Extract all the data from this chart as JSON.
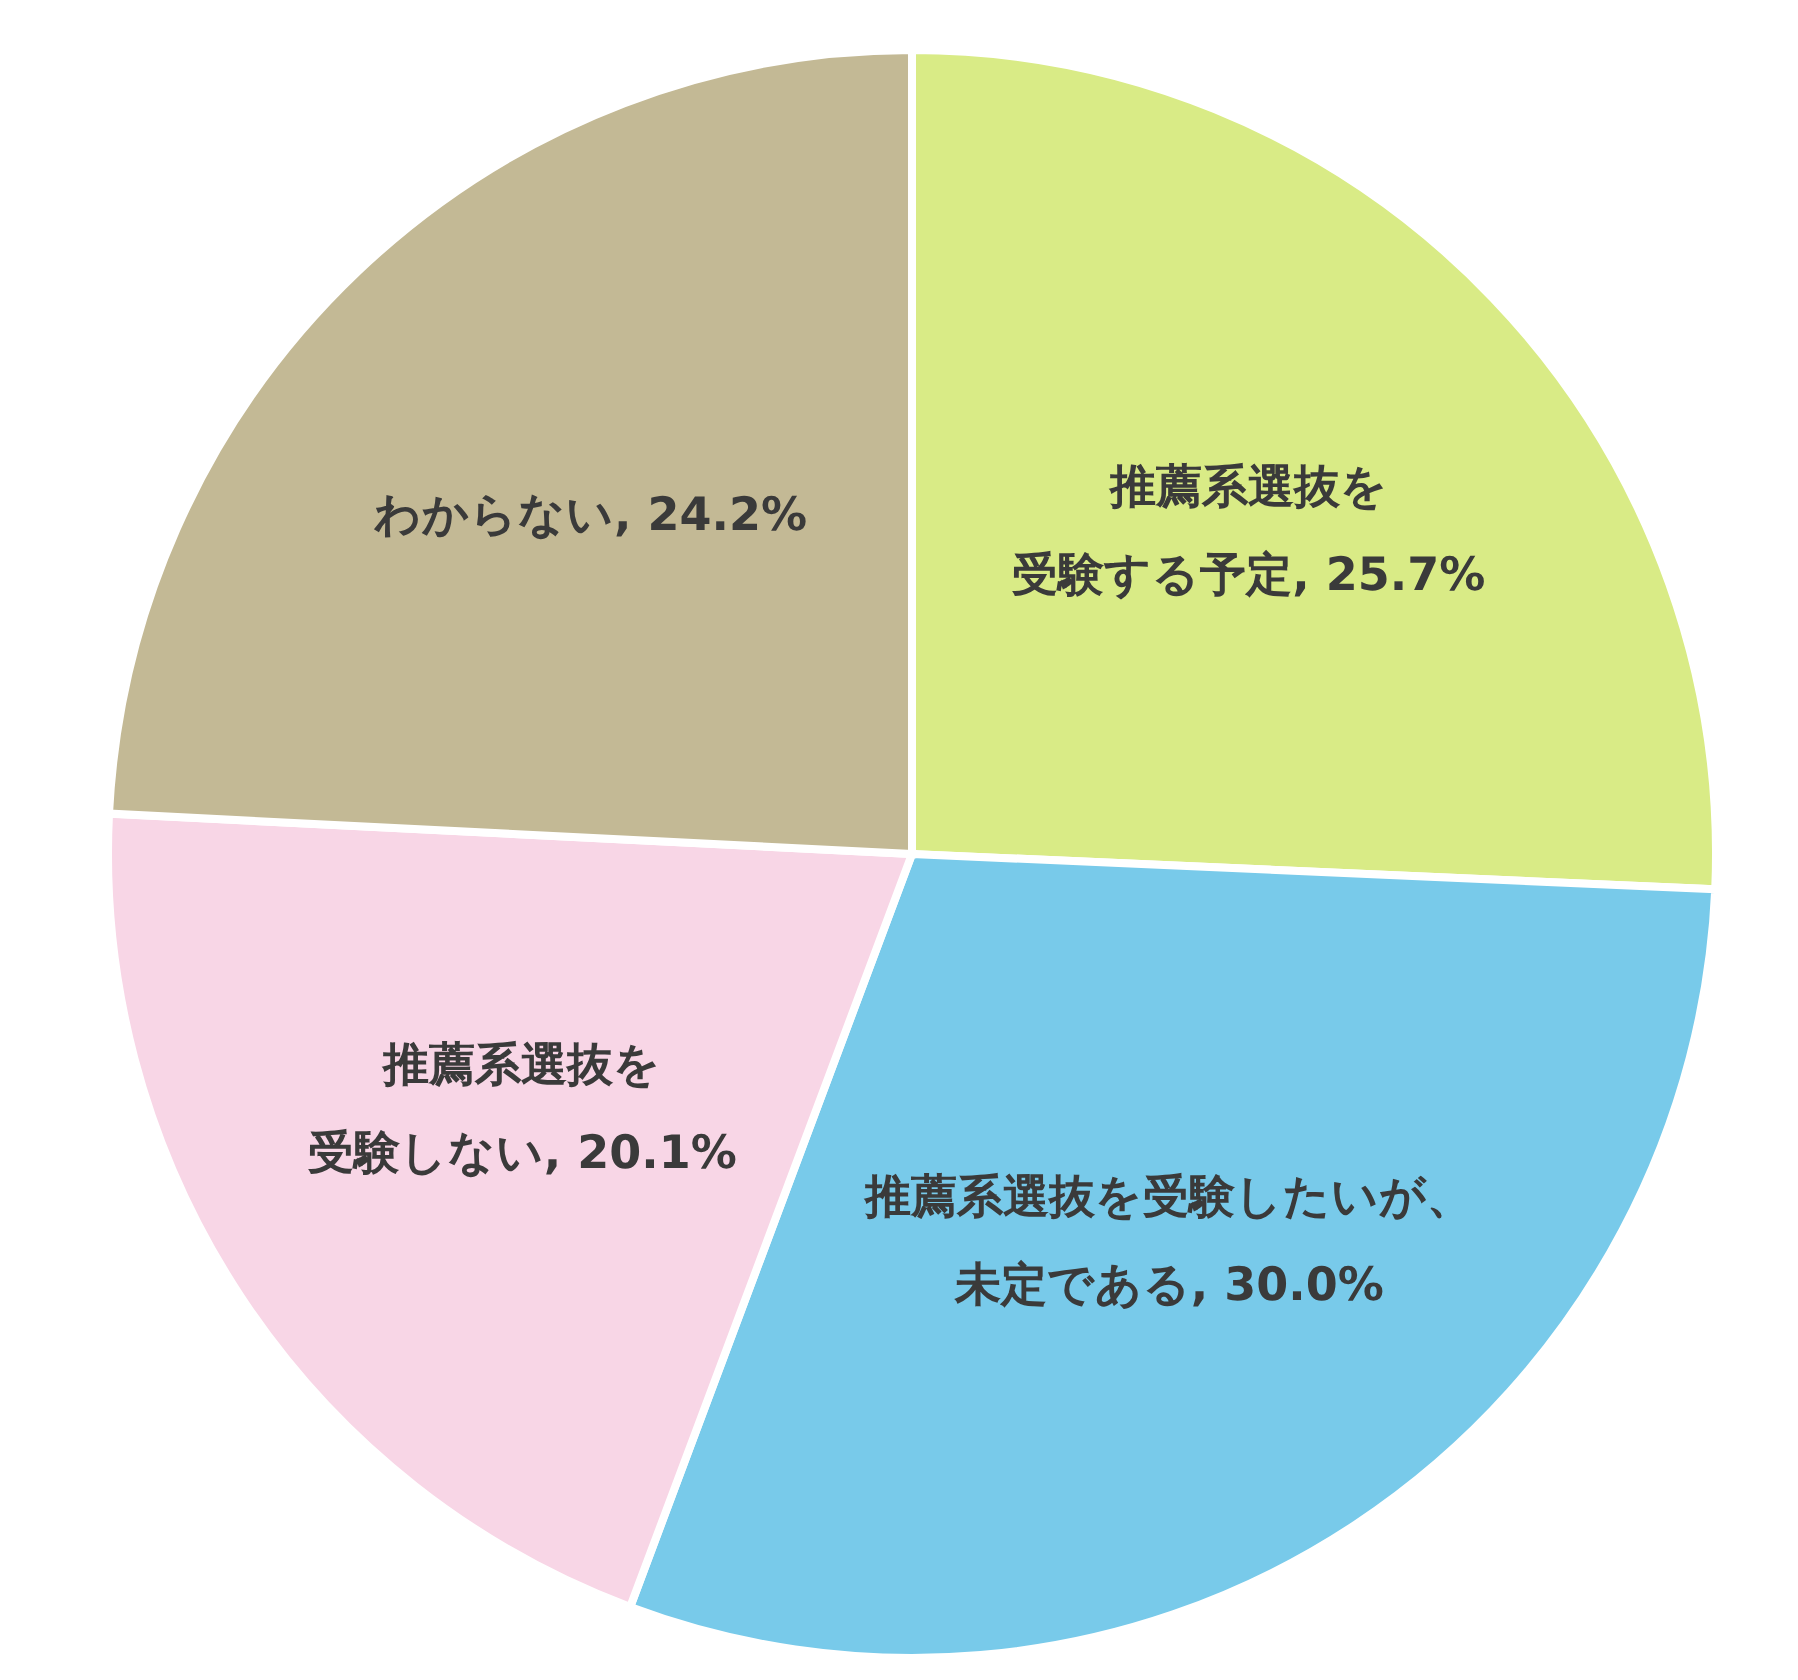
{
  "chart_data": {
    "type": "pie",
    "categories": [
      "推薦系選抜を受験する予定",
      "推薦系選抜を受験したいが、未定である",
      "推薦系選抜を受験しない",
      "わからない"
    ],
    "values": [
      25.7,
      30.0,
      20.1,
      24.2
    ],
    "value_labels": [
      "25.7%",
      "30.0%",
      "20.1%",
      "24.2%"
    ],
    "colors": [
      "#d9eb86",
      "#78caea",
      "#f8d6e6",
      "#c3b995"
    ],
    "legend": false
  }
}
